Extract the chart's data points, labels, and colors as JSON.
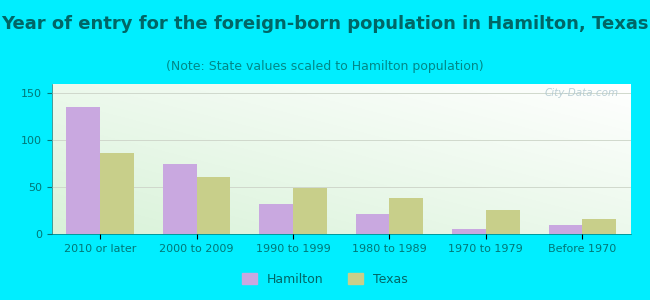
{
  "title": "Year of entry for the foreign-born population in Hamilton, Texas",
  "subtitle": "(Note: State values scaled to Hamilton population)",
  "categories": [
    "2010 or later",
    "2000 to 2009",
    "1990 to 1999",
    "1980 to 1989",
    "1970 to 1979",
    "Before 1970"
  ],
  "hamilton_values": [
    135,
    75,
    32,
    21,
    5,
    10
  ],
  "texas_values": [
    86,
    61,
    49,
    38,
    26,
    16
  ],
  "hamilton_color": "#c9a8e0",
  "texas_color": "#c8cf8a",
  "ylim": [
    0,
    160
  ],
  "yticks": [
    0,
    50,
    100,
    150
  ],
  "background_outer": "#00eeff",
  "bar_width": 0.35,
  "title_fontsize": 13,
  "subtitle_fontsize": 9,
  "tick_fontsize": 8,
  "legend_fontsize": 9,
  "watermark_text": "City-Data.com",
  "watermark_color": "#b0c8d0",
  "grid_color": "#d0d8cc",
  "title_color": "#006666",
  "subtitle_color": "#008888",
  "tick_color": "#007777",
  "legend_color": "#006666"
}
